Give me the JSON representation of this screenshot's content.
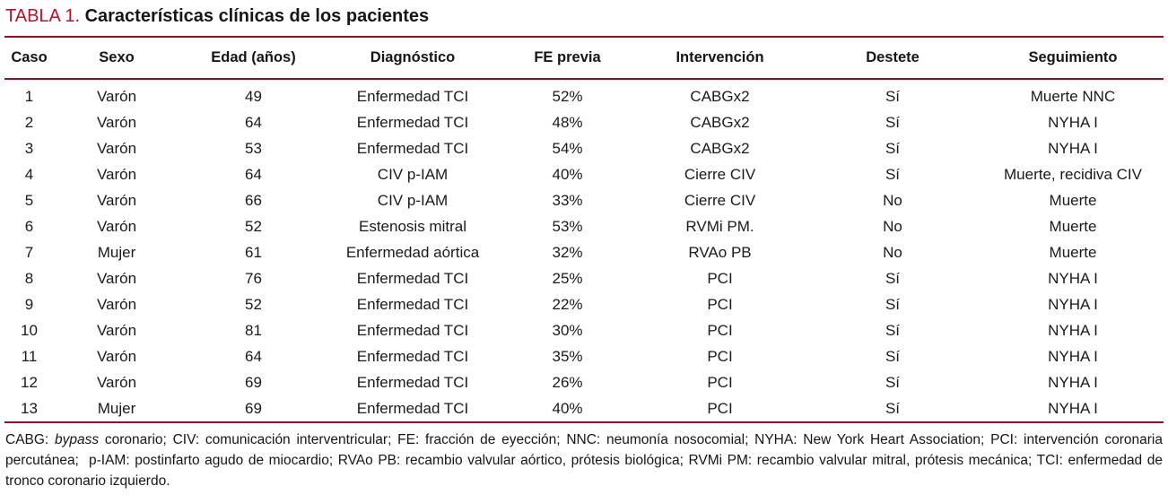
{
  "title": {
    "label": "TABLA 1.",
    "caption": "Características clínicas de los pacientes"
  },
  "colors": {
    "title_red": "#bf1029",
    "rule_red": "#9e0b26",
    "text": "#161616",
    "background": "#ffffff"
  },
  "table": {
    "columns": [
      "Caso",
      "Sexo",
      "Edad (años)",
      "Diagnóstico",
      "FE previa",
      "Intervención",
      "Destete",
      "Seguimiento"
    ],
    "rows": [
      [
        "1",
        "Varón",
        "49",
        "Enfermedad TCI",
        "52%",
        "CABGx2",
        "Sí",
        "Muerte NNC"
      ],
      [
        "2",
        "Varón",
        "64",
        "Enfermedad TCI",
        "48%",
        "CABGx2",
        "Sí",
        "NYHA I"
      ],
      [
        "3",
        "Varón",
        "53",
        "Enfermedad TCI",
        "54%",
        "CABGx2",
        "Sí",
        "NYHA I"
      ],
      [
        "4",
        "Varón",
        "64",
        "CIV p-IAM",
        "40%",
        "Cierre CIV",
        "Sí",
        "Muerte, recidiva CIV"
      ],
      [
        "5",
        "Varón",
        "66",
        "CIV p-IAM",
        "33%",
        "Cierre CIV",
        "No",
        "Muerte"
      ],
      [
        "6",
        "Varón",
        "52",
        "Estenosis mitral",
        "53%",
        "RVMi PM.",
        "No",
        "Muerte"
      ],
      [
        "7",
        "Mujer",
        "61",
        "Enfermedad aórtica",
        "32%",
        "RVAo PB",
        "No",
        "Muerte"
      ],
      [
        "8",
        "Varón",
        "76",
        "Enfermedad TCI",
        "25%",
        "PCI",
        "Sí",
        "NYHA I"
      ],
      [
        "9",
        "Varón",
        "52",
        "Enfermedad TCI",
        "22%",
        "PCI",
        "Sí",
        "NYHA I"
      ],
      [
        "10",
        "Varón",
        "81",
        "Enfermedad TCI",
        "30%",
        "PCI",
        "Sí",
        "NYHA I"
      ],
      [
        "11",
        "Varón",
        "64",
        "Enfermedad TCI",
        "35%",
        "PCI",
        "Sí",
        "NYHA I"
      ],
      [
        "12",
        "Varón",
        "69",
        "Enfermedad TCI",
        "26%",
        "PCI",
        "Sí",
        "NYHA I"
      ],
      [
        "13",
        "Mujer",
        "69",
        "Enfermedad TCI",
        "40%",
        "PCI",
        "Sí",
        "NYHA I"
      ]
    ]
  },
  "footnote": {
    "segments": [
      {
        "text": "CABG: ",
        "italic": false
      },
      {
        "text": "bypass",
        "italic": true
      },
      {
        "text": " coronario; CIV: comunicación interventricular; FE: fracción de eyección; NNC: neumonía nosocomial; NYHA: New York Heart Association; PCI: intervención coronaria percutánea;  p-IAM: postinfarto agudo de miocardio; RVAo PB: recambio valvular aórtico, prótesis biológica; RVMi PM: recambio valvular mitral, prótesis mecánica; TCI: enfermedad de tronco coronario izquierdo.",
        "italic": false
      }
    ]
  }
}
